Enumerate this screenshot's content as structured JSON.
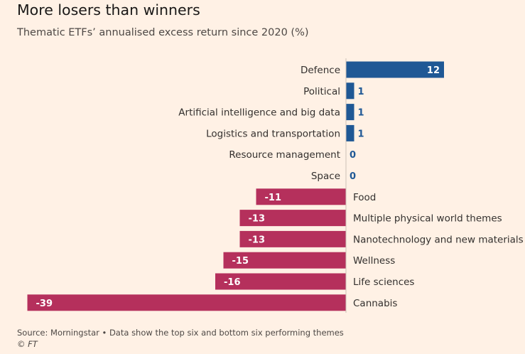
{
  "title": "More losers than winners",
  "subtitle": "Thematic ETFs’ annualised excess return since 2020 (%)",
  "source": "Source: Morningstar • Data show the top six and bottom six performing themes",
  "copyright": "© FT",
  "colors": {
    "positive": "#1f5895",
    "negative": "#b5305c",
    "background": "#fff1e5",
    "axis": "#ccc1b7"
  },
  "chart_data": {
    "type": "bar",
    "orientation": "horizontal",
    "title": "More losers than winners",
    "subtitle": "Thematic ETFs’ annualised excess return since 2020 (%)",
    "xlabel": "",
    "ylabel": "",
    "xlim": [
      -39,
      12
    ],
    "categories": [
      "Defence",
      "Political",
      "Artificial intelligence and big data",
      "Logistics and transportation",
      "Resource management",
      "Space",
      "Food",
      "Multiple physical world themes",
      "Nanotechnology and new materials",
      "Wellness",
      "Life sciences",
      "Cannabis"
    ],
    "values": [
      12,
      1,
      1,
      1,
      0,
      0,
      -11,
      -13,
      -13,
      -15,
      -16,
      -39
    ]
  }
}
